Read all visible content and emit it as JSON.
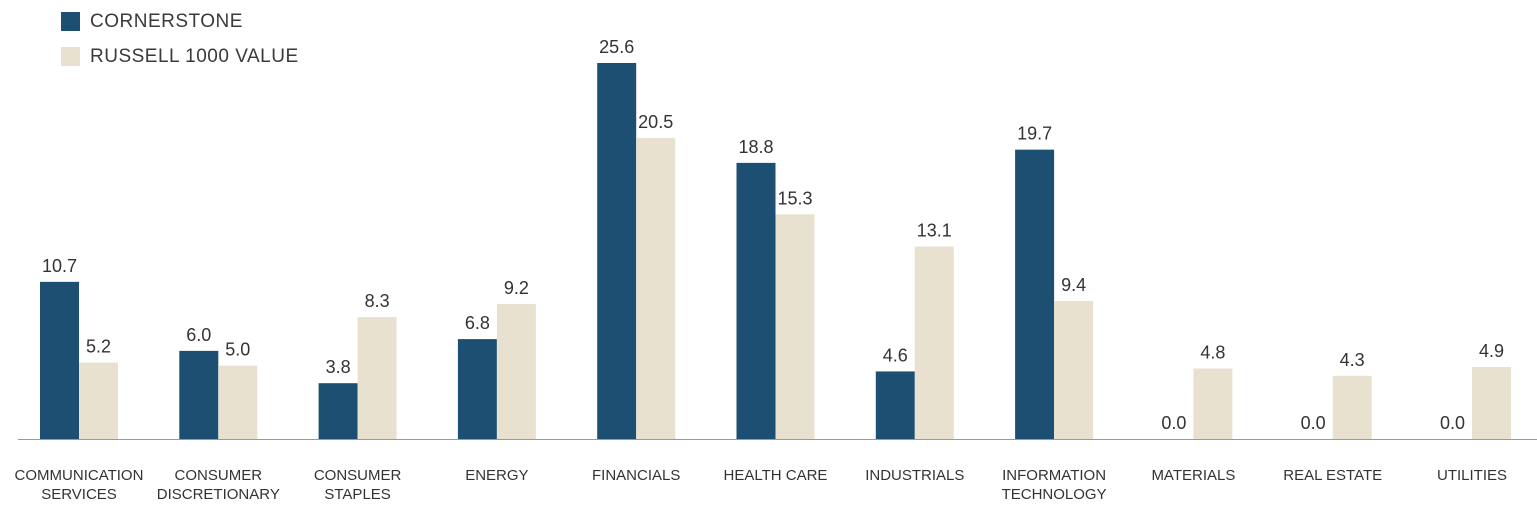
{
  "colors": {
    "cornerstone": "#1d4f72",
    "russell": "#e8e1cf",
    "axis": "#9a9a9a",
    "text": "#333333"
  },
  "legend": {
    "items": [
      {
        "label": "CORNERSTONE",
        "color_key": "cornerstone"
      },
      {
        "label": "RUSSELL 1000 VALUE",
        "color_key": "russell"
      }
    ]
  },
  "chart_data": {
    "type": "bar",
    "categories": [
      [
        "COMMUNICATION",
        "SERVICES"
      ],
      [
        "CONSUMER",
        "DISCRETIONARY"
      ],
      [
        "CONSUMER",
        "STAPLES"
      ],
      [
        "ENERGY"
      ],
      [
        "FINANCIALS"
      ],
      [
        "HEALTH CARE"
      ],
      [
        "INDUSTRIALS"
      ],
      [
        "INFORMATION",
        "TECHNOLOGY"
      ],
      [
        "MATERIALS"
      ],
      [
        "REAL ESTATE"
      ],
      [
        "UTILITIES"
      ]
    ],
    "series": [
      {
        "name": "CORNERSTONE",
        "values": [
          10.7,
          6.0,
          3.8,
          6.8,
          25.6,
          18.8,
          4.6,
          19.7,
          0.0,
          0.0,
          0.0
        ],
        "labels": [
          "10.7",
          "6.0",
          "3.8",
          "6.8",
          "25.6",
          "18.8",
          "4.6",
          "19.7",
          "0.0",
          "0.0",
          "0.0"
        ]
      },
      {
        "name": "RUSSELL 1000 VALUE",
        "values": [
          5.2,
          5.0,
          8.3,
          9.2,
          20.5,
          15.3,
          13.1,
          9.4,
          4.8,
          4.3,
          4.9
        ],
        "labels": [
          "5.2",
          "5.0",
          "8.3",
          "9.2",
          "20.5",
          "15.3",
          "13.1",
          "9.4",
          "4.8",
          "4.3",
          "4.9"
        ]
      }
    ],
    "ylim": [
      0,
      25.6
    ],
    "grid": false,
    "legend_position": "top-left"
  }
}
